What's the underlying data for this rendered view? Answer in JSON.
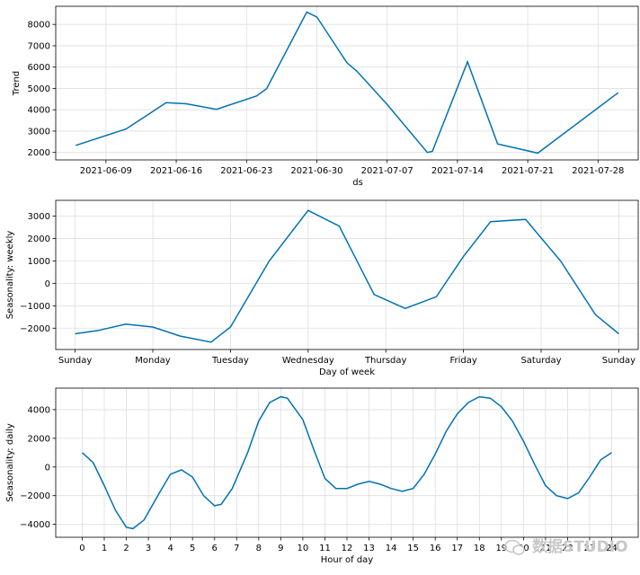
{
  "colors": {
    "series": "#0072B2",
    "grid": "#dedede"
  },
  "watermark": {
    "text": "数据STUDIO",
    "icon": "wechat-icon"
  },
  "chart_data": [
    {
      "type": "line",
      "xlabel": "ds",
      "ylabel": "Trend",
      "x_ticks": [
        "2021-06-09",
        "2021-06-16",
        "2021-06-23",
        "2021-06-30",
        "2021-07-07",
        "2021-07-14",
        "2021-07-21",
        "2021-07-28"
      ],
      "x_range": [
        "2021-06-04",
        "2021-08-01"
      ],
      "y_ticks": [
        2000,
        3000,
        4000,
        5000,
        6000,
        7000,
        8000
      ],
      "ylim": [
        1650,
        8850
      ],
      "grid": true,
      "series": [
        {
          "x": [
            "2021-06-06",
            "2021-06-11",
            "2021-06-15",
            "2021-06-17",
            "2021-06-20",
            "2021-06-24",
            "2021-06-25",
            "2021-06-29",
            "2021-06-30",
            "2021-07-03",
            "2021-07-04",
            "2021-07-07",
            "2021-07-11",
            "2021-07-11 12:00",
            "2021-07-15",
            "2021-07-18",
            "2021-07-22",
            "2021-07-30"
          ],
          "y": [
            2330,
            3100,
            4330,
            4280,
            4020,
            4650,
            4990,
            8580,
            8350,
            6200,
            5800,
            4250,
            2000,
            2050,
            6250,
            2400,
            1970,
            4800
          ]
        }
      ]
    },
    {
      "type": "line",
      "xlabel": "Day of week",
      "ylabel": "Seasonality: weekly",
      "x_ticks": [
        "Sunday",
        "Monday",
        "Tuesday",
        "Wednesday",
        "Thursday",
        "Friday",
        "Saturday",
        "Sunday"
      ],
      "x_range": [
        -0.25,
        7.25
      ],
      "y_ticks": [
        -2000,
        -1000,
        0,
        1000,
        2000,
        3000
      ],
      "ylim": [
        -2950,
        3700
      ],
      "grid": true,
      "series": [
        {
          "x": [
            0,
            0.3,
            0.65,
            1,
            1.35,
            1.75,
            2,
            2.5,
            3,
            3.4,
            3.85,
            4.25,
            4.65,
            5,
            5.35,
            5.8,
            6.25,
            6.7,
            7
          ],
          "y": [
            -2250,
            -2100,
            -1820,
            -1950,
            -2350,
            -2620,
            -1950,
            1000,
            3250,
            2550,
            -500,
            -1120,
            -600,
            1200,
            2750,
            2850,
            1000,
            -1400,
            -2250
          ]
        }
      ]
    },
    {
      "type": "line",
      "xlabel": "Hour of day",
      "ylabel": "Seasonality: daily",
      "x_ticks": [
        "0",
        "1",
        "2",
        "3",
        "4",
        "5",
        "6",
        "7",
        "8",
        "9",
        "10",
        "11",
        "12",
        "13",
        "14",
        "15",
        "16",
        "17",
        "18",
        "19",
        "20",
        "21",
        "22",
        "23",
        "24"
      ],
      "x_range": [
        -1.2,
        25.2
      ],
      "y_ticks": [
        -4000,
        -2000,
        0,
        2000,
        4000
      ],
      "ylim": [
        -4900,
        5500
      ],
      "grid": true,
      "series": [
        {
          "x": [
            0,
            0.5,
            1,
            1.5,
            2,
            2.3,
            2.8,
            3.5,
            4,
            4.5,
            5,
            5.5,
            6,
            6.3,
            6.8,
            7.5,
            8,
            8.5,
            9,
            9.3,
            10,
            10.5,
            11,
            11.5,
            12,
            12.5,
            13,
            13.5,
            14,
            14.5,
            15,
            15.5,
            16,
            16.5,
            17,
            17.5,
            18,
            18.5,
            19,
            19.5,
            20,
            20.5,
            21,
            21.5,
            22,
            22.5,
            23,
            23.5,
            24
          ],
          "y": [
            1000,
            300,
            -1300,
            -3000,
            -4200,
            -4300,
            -3700,
            -1800,
            -500,
            -200,
            -700,
            -2000,
            -2700,
            -2600,
            -1500,
            1000,
            3200,
            4500,
            4900,
            4800,
            3300,
            1200,
            -800,
            -1500,
            -1500,
            -1200,
            -1000,
            -1200,
            -1500,
            -1700,
            -1500,
            -500,
            900,
            2500,
            3700,
            4500,
            4900,
            4800,
            4200,
            3200,
            1800,
            200,
            -1300,
            -2000,
            -2200,
            -1800,
            -700,
            500,
            1000
          ]
        }
      ]
    }
  ]
}
